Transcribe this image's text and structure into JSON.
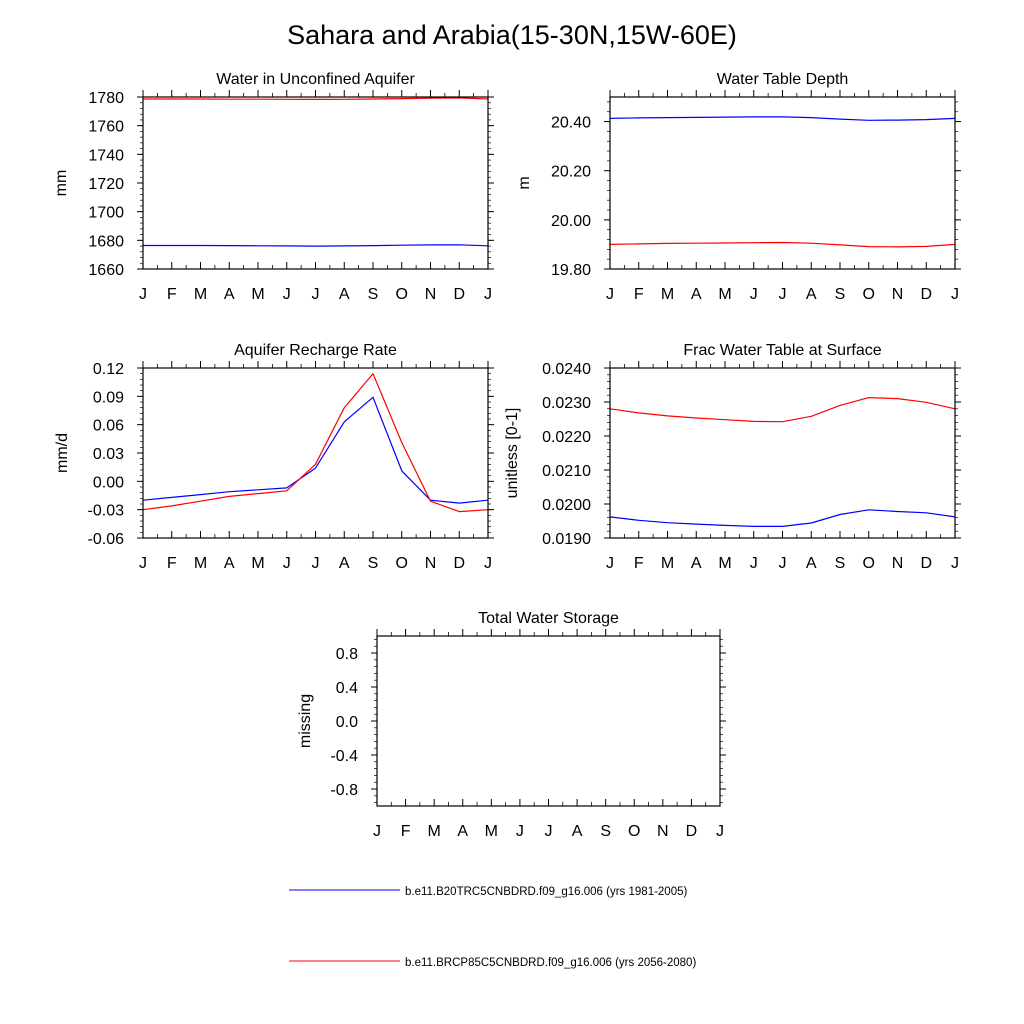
{
  "main_title": "Sahara and Arabia(15-30N,15W-60E)",
  "colors": {
    "series_1": "#0000ff",
    "series_2": "#ff0000",
    "axes": "#000000"
  },
  "legend": [
    {
      "label": "b.e11.B20TRC5CNBDRD.f09_g16.006 (yrs 1981-2005)",
      "color": "#0000ff"
    },
    {
      "label": "b.e11.BRCP85C5CNBDRD.f09_g16.006 (yrs 2056-2080)",
      "color": "#ff0000"
    }
  ],
  "chart_data": [
    {
      "id": "water-in-unconfined-aquifer",
      "type": "line",
      "title": "Water in Unconfined Aquifer",
      "ylabel": "mm",
      "xlabel": "",
      "categories": [
        "J",
        "F",
        "M",
        "A",
        "M",
        "J",
        "J",
        "A",
        "S",
        "O",
        "N",
        "D",
        "J"
      ],
      "ylim": [
        1660,
        1780
      ],
      "yticks": [
        "1660",
        "1680",
        "1700",
        "1720",
        "1740",
        "1760",
        "1780"
      ],
      "series": [
        {
          "name": "b.e11.B20TRC5CNBDRD.f09_g16.006 (yrs 1981-2005)",
          "values": [
            1676.4,
            1676.4,
            1676.4,
            1676.3,
            1676.2,
            1676.1,
            1676.0,
            1676.1,
            1676.3,
            1676.6,
            1676.8,
            1676.9,
            1676.2
          ]
        },
        {
          "name": "b.e11.BRCP85C5CNBDRD.f09_g16.006 (yrs 2056-2080)",
          "values": [
            1778.6,
            1778.6,
            1778.6,
            1778.5,
            1778.5,
            1778.4,
            1778.3,
            1778.4,
            1778.6,
            1778.9,
            1779.2,
            1779.4,
            1778.6
          ]
        }
      ]
    },
    {
      "id": "water-table-depth",
      "type": "line",
      "title": "Water Table Depth",
      "ylabel": "m",
      "xlabel": "",
      "categories": [
        "J",
        "F",
        "M",
        "A",
        "M",
        "J",
        "J",
        "A",
        "S",
        "O",
        "N",
        "D",
        "J"
      ],
      "ylim": [
        19.8,
        20.5
      ],
      "yticks": [
        "19.80",
        "20.00",
        "20.20",
        "20.40"
      ],
      "series": [
        {
          "name": "b.e11.B20TRC5CNBDRD.f09_g16.006 (yrs 1981-2005)",
          "values": [
            20.413,
            20.415,
            20.416,
            20.417,
            20.418,
            20.419,
            20.419,
            20.416,
            20.41,
            20.405,
            20.406,
            20.408,
            20.413
          ]
        },
        {
          "name": "b.e11.BRCP85C5CNBDRD.f09_g16.006 (yrs 2056-2080)",
          "values": [
            19.9,
            19.902,
            19.904,
            19.905,
            19.906,
            19.907,
            19.908,
            19.905,
            19.898,
            19.891,
            19.89,
            19.892,
            19.9
          ]
        }
      ]
    },
    {
      "id": "aquifer-recharge-rate",
      "type": "line",
      "title": "Aquifer Recharge Rate",
      "ylabel": "mm/d",
      "xlabel": "",
      "categories": [
        "J",
        "F",
        "M",
        "A",
        "M",
        "J",
        "J",
        "A",
        "S",
        "O",
        "N",
        "D",
        "J"
      ],
      "ylim": [
        -0.06,
        0.12
      ],
      "yticks": [
        "-0.06",
        "-0.03",
        "0.00",
        "0.03",
        "0.06",
        "0.09",
        "0.12"
      ],
      "series": [
        {
          "name": "b.e11.B20TRC5CNBDRD.f09_g16.006 (yrs 1981-2005)",
          "values": [
            -0.02,
            -0.017,
            -0.014,
            -0.011,
            -0.009,
            -0.007,
            0.014,
            0.063,
            0.089,
            0.011,
            -0.02,
            -0.023,
            -0.02
          ]
        },
        {
          "name": "b.e11.BRCP85C5CNBDRD.f09_g16.006 (yrs 2056-2080)",
          "values": [
            -0.03,
            -0.026,
            -0.021,
            -0.016,
            -0.013,
            -0.01,
            0.018,
            0.078,
            0.114,
            0.041,
            -0.021,
            -0.032,
            -0.03
          ]
        }
      ]
    },
    {
      "id": "frac-water-table-at-surface",
      "type": "line",
      "title": "Frac Water Table at Surface",
      "ylabel": "unitless [0-1]",
      "xlabel": "",
      "categories": [
        "J",
        "F",
        "M",
        "A",
        "M",
        "J",
        "J",
        "A",
        "S",
        "O",
        "N",
        "D",
        "J"
      ],
      "ylim": [
        0.019,
        0.024
      ],
      "yticks": [
        "0.0190",
        "0.0200",
        "0.0210",
        "0.0220",
        "0.0230",
        "0.0240"
      ],
      "series": [
        {
          "name": "b.e11.B20TRC5CNBDRD.f09_g16.006 (yrs 1981-2005)",
          "values": [
            0.01962,
            0.01952,
            0.01945,
            0.01941,
            0.01937,
            0.01934,
            0.01934,
            0.01944,
            0.01969,
            0.01983,
            0.01978,
            0.01974,
            0.01962
          ]
        },
        {
          "name": "b.e11.BRCP85C5CNBDRD.f09_g16.006 (yrs 2056-2080)",
          "values": [
            0.0228,
            0.02268,
            0.02259,
            0.02253,
            0.02248,
            0.02243,
            0.02242,
            0.02258,
            0.0229,
            0.02313,
            0.0231,
            0.02299,
            0.0228
          ]
        }
      ]
    },
    {
      "id": "total-water-storage",
      "type": "line",
      "title": "Total Water Storage",
      "ylabel": "missing",
      "xlabel": "",
      "categories": [
        "J",
        "F",
        "M",
        "A",
        "M",
        "J",
        "J",
        "A",
        "S",
        "O",
        "N",
        "D",
        "J"
      ],
      "ylim": [
        -1,
        1
      ],
      "yticks": [
        "-0.8",
        "-0.4",
        "0.0",
        "0.4",
        "0.8"
      ],
      "series": []
    }
  ]
}
